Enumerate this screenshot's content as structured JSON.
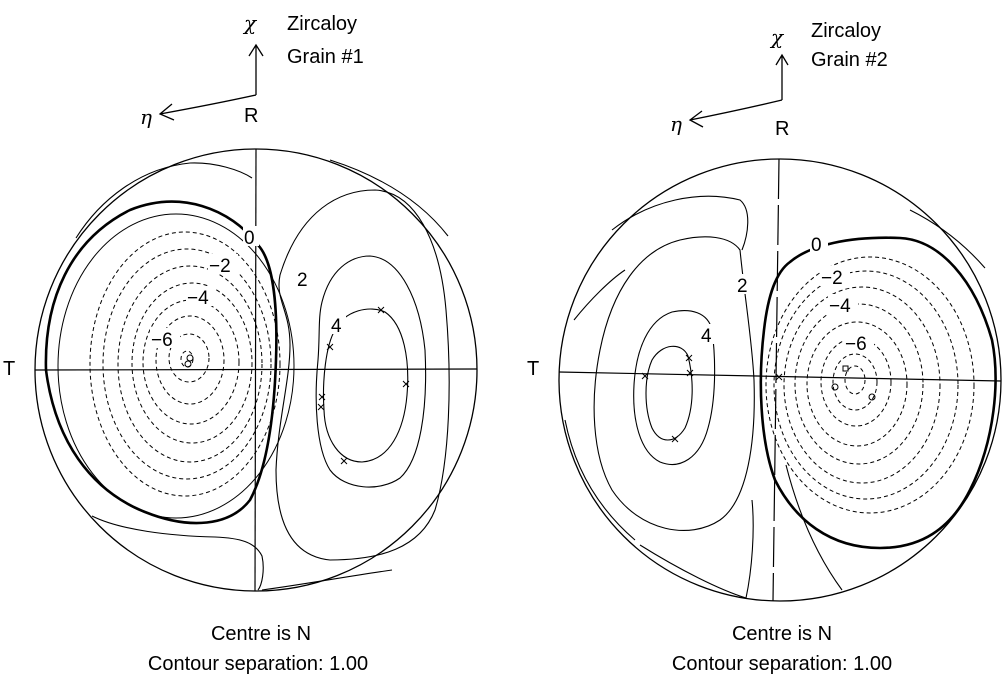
{
  "panels": [
    {
      "id": "grain1",
      "material": "Zircaloy",
      "grain": "Grain #1",
      "axis_up": "χ",
      "axis_left": "η",
      "label_top": "R",
      "label_left": "T",
      "contour_labels": [
        "0",
        "−2",
        "−4",
        "−6",
        "2",
        "4"
      ],
      "caption_line1": "Centre is N",
      "caption_line2": "Contour separation: 1.00"
    },
    {
      "id": "grain2",
      "material": "Zircaloy",
      "grain": "Grain #2",
      "axis_up": "χ",
      "axis_left": "η",
      "label_top": "R",
      "label_left": "T",
      "contour_labels": [
        "0",
        "−2",
        "−4",
        "−6",
        "2",
        "4"
      ],
      "caption_line1": "Centre is N",
      "caption_line2": "Contour separation: 1.00"
    }
  ]
}
